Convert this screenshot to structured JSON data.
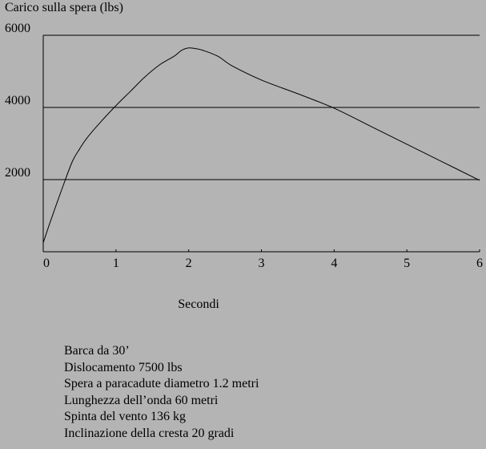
{
  "chart_data": {
    "type": "line",
    "title": "",
    "ylabel": "Carico sulla spera (lbs)",
    "xlabel": "Secondi",
    "xlim": [
      0,
      6
    ],
    "ylim": [
      0,
      6000
    ],
    "x_ticks": [
      "0",
      "1",
      "2",
      "3",
      "4",
      "5",
      "6"
    ],
    "y_ticks": [
      "2000",
      "4000",
      "6000"
    ],
    "grid": "horizontal at 2000, 4000, 6000",
    "series": [
      {
        "name": "",
        "color": "#000000",
        "x": [
          0,
          0.1,
          0.25,
          0.4,
          0.5,
          0.6,
          0.8,
          1.0,
          1.2,
          1.4,
          1.6,
          1.8,
          1.9,
          2.0,
          2.1,
          2.2,
          2.4,
          2.6,
          3.0,
          3.5,
          4.0,
          4.5,
          5.0,
          5.5,
          6.0
        ],
        "y": [
          250,
          850,
          1700,
          2500,
          2850,
          3150,
          3620,
          4050,
          4450,
          4850,
          5180,
          5420,
          5580,
          5650,
          5630,
          5580,
          5420,
          5150,
          4760,
          4380,
          3980,
          3480,
          2980,
          2480,
          1980
        ]
      }
    ]
  },
  "notes": [
    "Barca da 30’",
    "Dislocamento 7500 lbs",
    "Spera a paracadute diametro 1.2 metri",
    "Lunghezza dell’onda 60 metri",
    "Spinta del vento 136 kg",
    "Inclinazione della cresta 20 gradi"
  ]
}
